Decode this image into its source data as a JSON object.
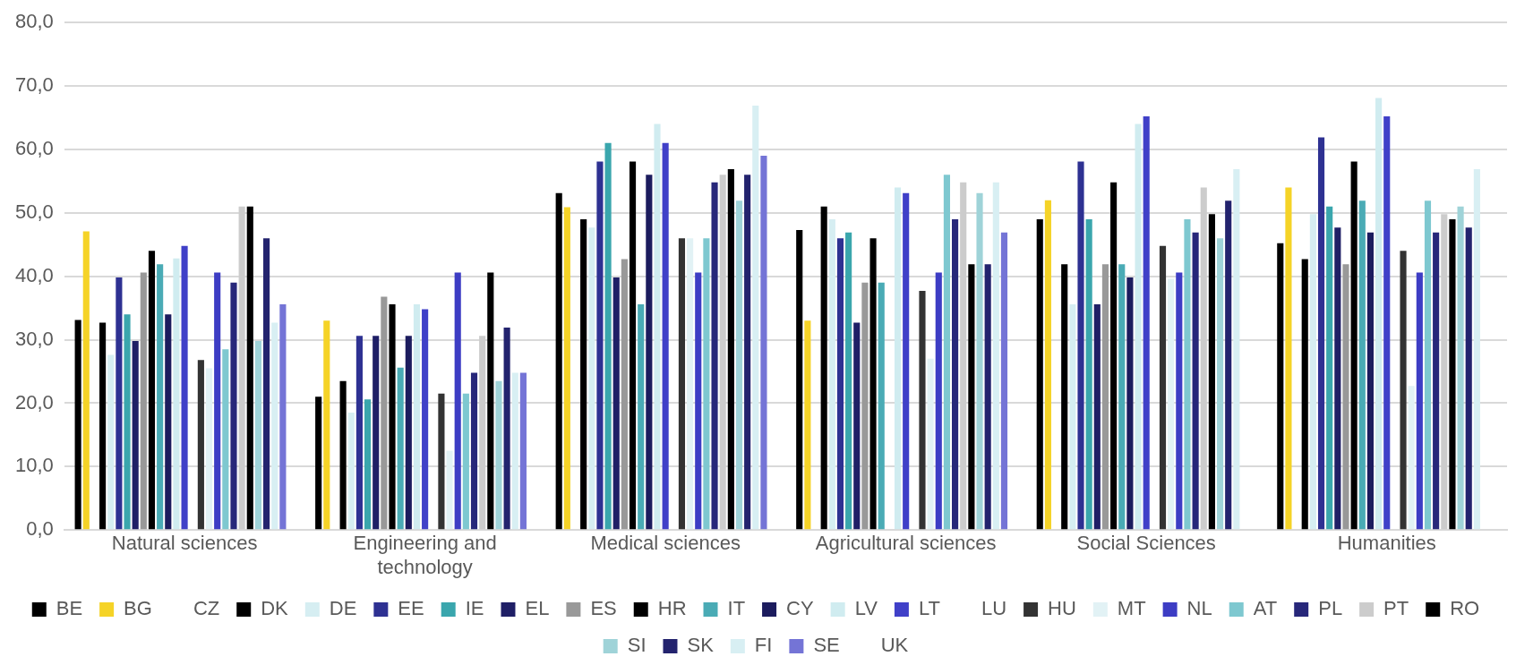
{
  "chart_data": {
    "type": "bar",
    "categories": [
      "Natural sciences",
      "Engineering and technology",
      "Medical sciences",
      "Agricultural sciences",
      "Social Sciences",
      "Humanities"
    ],
    "ylim": [
      0,
      80
    ],
    "yticks": [
      {
        "value": 0,
        "label": "0,0"
      },
      {
        "value": 10,
        "label": "10,0"
      },
      {
        "value": 20,
        "label": "20,0"
      },
      {
        "value": 30,
        "label": "30,0"
      },
      {
        "value": 40,
        "label": "40,0"
      },
      {
        "value": 50,
        "label": "50,0"
      },
      {
        "value": 60,
        "label": "60,0"
      },
      {
        "value": 70,
        "label": "70,0"
      },
      {
        "value": 80,
        "label": "80,0"
      }
    ],
    "grid": "y",
    "legend": "bottom",
    "series": [
      {
        "name": "BE",
        "color": "#000000",
        "values": [
          33.1,
          21,
          53.1,
          47.3,
          49,
          45.2
        ]
      },
      {
        "name": "BG",
        "color": "#f5d327",
        "values": [
          47.1,
          33,
          50.9,
          33,
          52,
          54
        ]
      },
      {
        "name": "CZ",
        "values": [
          null,
          null,
          null,
          null,
          null,
          null
        ]
      },
      {
        "name": "DK",
        "color": "#000000",
        "values": [
          32.7,
          23.5,
          49,
          51,
          41.9,
          42.7
        ]
      },
      {
        "name": "DE",
        "color": "#d6eef2",
        "values": [
          27.6,
          18.5,
          47.7,
          49,
          35.6,
          49.8
        ]
      },
      {
        "name": "EE",
        "color": "#2e3192",
        "values": [
          39.8,
          30.6,
          58.1,
          46,
          58.1,
          61.9
        ]
      },
      {
        "name": "IE",
        "color": "#3aa6ad",
        "values": [
          34,
          20.6,
          61,
          46.9,
          49,
          51
        ]
      },
      {
        "name": "EL",
        "color": "#1f1f66",
        "values": [
          29.8,
          30.6,
          39.8,
          32.7,
          35.6,
          47.7
        ]
      },
      {
        "name": "ES",
        "color": "#999999",
        "values": [
          40.6,
          36.8,
          42.7,
          39,
          41.9,
          41.9
        ]
      },
      {
        "name": "HR",
        "color": "#000000",
        "values": [
          44,
          35.6,
          58.1,
          46,
          54.8,
          58.1
        ]
      },
      {
        "name": "IT",
        "color": "#4aabb5",
        "values": [
          41.9,
          25.6,
          35.6,
          39,
          41.9,
          51.9
        ]
      },
      {
        "name": "CY",
        "color": "#1c1c5e",
        "values": [
          34,
          30.6,
          56,
          null,
          39.8,
          46.9
        ]
      },
      {
        "name": "LV",
        "color": "#d0ecf0",
        "values": [
          42.8,
          35.6,
          64,
          54,
          64,
          68.1
        ]
      },
      {
        "name": "LT",
        "color": "#4040c8",
        "values": [
          44.8,
          34.8,
          61,
          53.1,
          65.2,
          65.2
        ]
      },
      {
        "name": "LU",
        "values": [
          null,
          null,
          null,
          null,
          null,
          null
        ]
      },
      {
        "name": "HU",
        "color": "#333333",
        "values": [
          26.8,
          21.5,
          46,
          37.7,
          44.8,
          44
        ]
      },
      {
        "name": "MT",
        "color": "#e2f2f5",
        "values": [
          25.5,
          12.5,
          46,
          27,
          39.6,
          22.7
        ]
      },
      {
        "name": "NL",
        "color": "#3d3dc4",
        "values": [
          40.6,
          40.6,
          40.6,
          40.6,
          40.6,
          40.6
        ]
      },
      {
        "name": "AT",
        "color": "#7ec8d0",
        "values": [
          28.5,
          21.5,
          46,
          56,
          49,
          51.9
        ]
      },
      {
        "name": "PL",
        "color": "#27277a",
        "values": [
          39,
          24.8,
          54.8,
          49,
          46.9,
          46.9
        ]
      },
      {
        "name": "PT",
        "color": "#cccccc",
        "values": [
          51,
          30.6,
          56,
          54.8,
          54,
          49.8
        ]
      },
      {
        "name": "RO",
        "color": "#000000",
        "values": [
          51,
          40.6,
          56.9,
          41.9,
          49.8,
          49
        ]
      },
      {
        "name": "SI",
        "color": "#9fd3d8",
        "values": [
          29.8,
          23.5,
          51.9,
          53.1,
          46,
          51
        ]
      },
      {
        "name": "SK",
        "color": "#23236e",
        "values": [
          46,
          31.9,
          56,
          41.9,
          51.9,
          47.7
        ]
      },
      {
        "name": "FI",
        "color": "#d8eff3",
        "values": [
          32.7,
          24.8,
          66.9,
          54.8,
          56.9,
          56.9
        ]
      },
      {
        "name": "SE",
        "color": "#7474d6",
        "values": [
          35.6,
          24.8,
          59,
          46.9,
          null,
          null
        ]
      },
      {
        "name": "UK",
        "values": [
          null,
          null,
          null,
          null,
          null,
          null
        ]
      }
    ]
  }
}
